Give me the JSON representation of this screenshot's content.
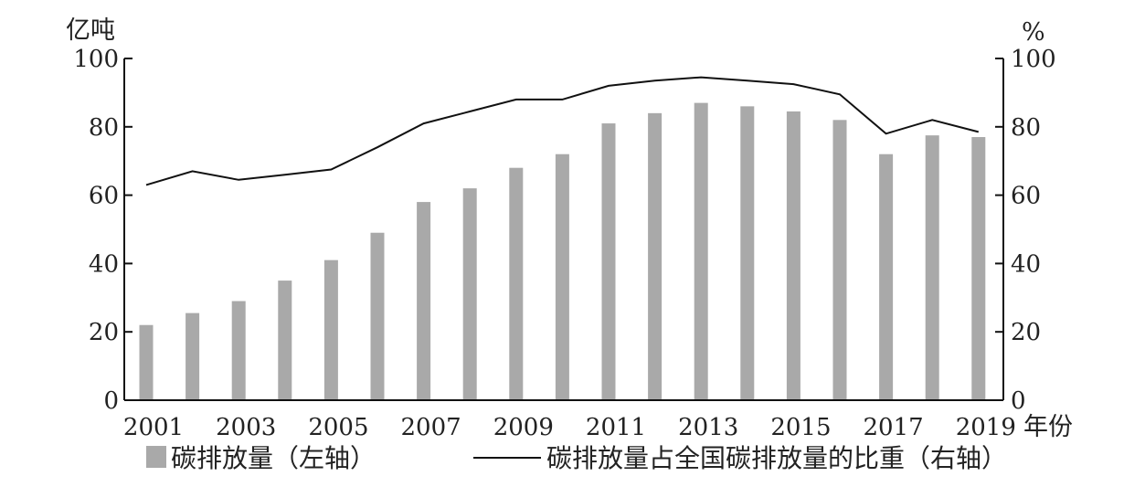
{
  "chart_data": {
    "type": "bar",
    "title": "",
    "xlabel": "年份",
    "left_axis": {
      "label": "亿吨",
      "ylim": [
        0,
        100
      ],
      "ticks": [
        0,
        20,
        40,
        60,
        80,
        100
      ]
    },
    "right_axis": {
      "label": "%",
      "ylim": [
        0,
        100
      ],
      "ticks": [
        0,
        20,
        40,
        60,
        80,
        100
      ]
    },
    "x": [
      2001,
      2002,
      2003,
      2004,
      2005,
      2006,
      2007,
      2008,
      2009,
      2010,
      2011,
      2012,
      2013,
      2014,
      2015,
      2016,
      2017,
      2018,
      2019
    ],
    "x_tick_labels": [
      "2001",
      "2003",
      "2005",
      "2007",
      "2009",
      "2011",
      "2013",
      "2015",
      "2017",
      "2019"
    ],
    "series": [
      {
        "name": "碳排放量（左轴）",
        "type": "bar",
        "axis": "left",
        "color": "#a9a9a9",
        "values": [
          22,
          25.5,
          29,
          35,
          41,
          49,
          58,
          62,
          68,
          72,
          81,
          84,
          87,
          86,
          84.5,
          82,
          72,
          77.5,
          77
        ]
      },
      {
        "name": "碳排放量占全国碳排放量的比重（右轴）",
        "type": "line",
        "axis": "right",
        "color": "#111111",
        "values": [
          63,
          67,
          64.5,
          66,
          67.5,
          74,
          81,
          84.5,
          88,
          88,
          92,
          93.5,
          94.5,
          93.5,
          92.5,
          89.5,
          78,
          82,
          78.5
        ]
      }
    ],
    "grid": false,
    "legend_position": "bottom"
  }
}
